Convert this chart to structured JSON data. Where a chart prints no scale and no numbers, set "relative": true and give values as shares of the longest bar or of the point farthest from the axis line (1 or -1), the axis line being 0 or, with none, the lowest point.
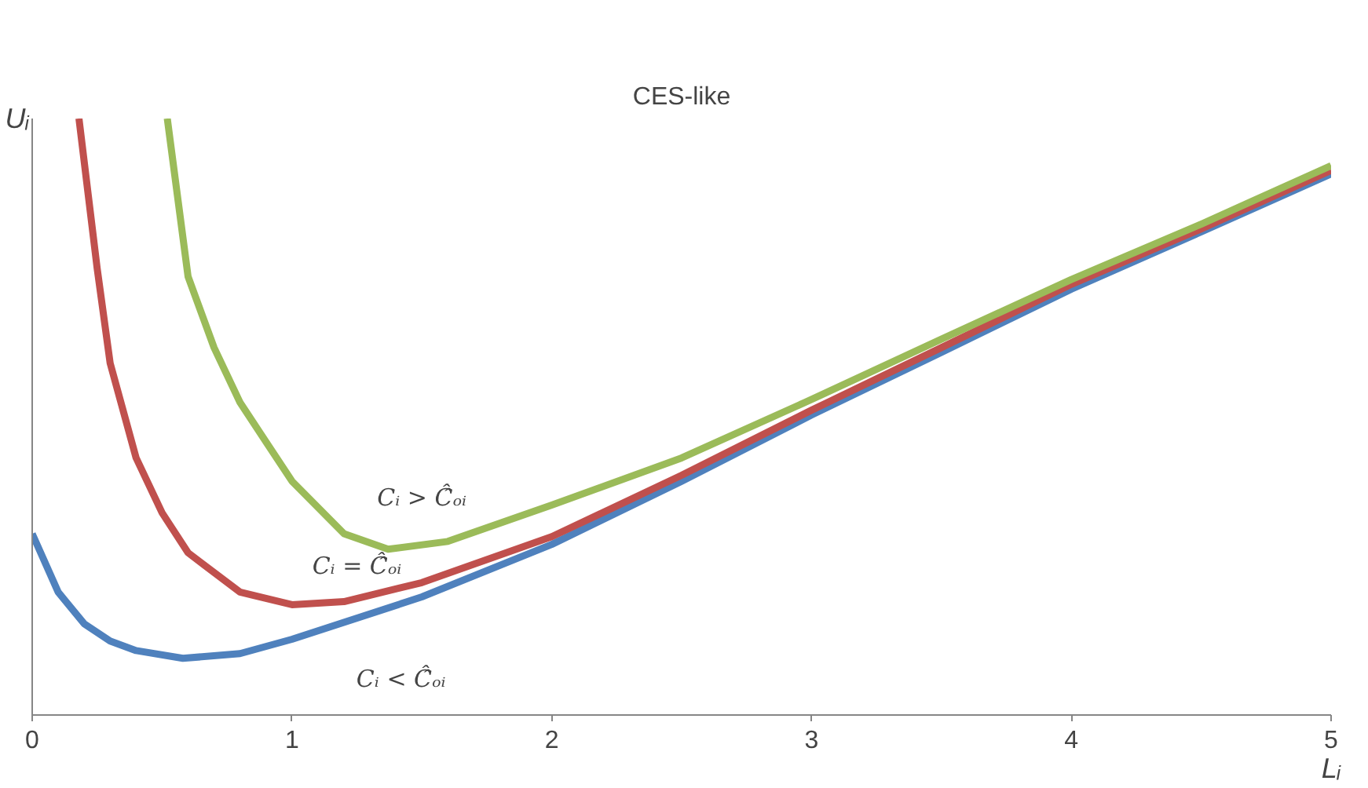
{
  "chart_data": {
    "type": "line",
    "title": "CES-like",
    "xlabel": "Lᵢ",
    "ylabel": "Uᵢ",
    "relative": true,
    "xlim": [
      0,
      5
    ],
    "xticks": [
      0,
      1,
      2,
      3,
      4,
      5
    ],
    "grid": false,
    "marker": "none",
    "line_style": "solid",
    "series": [
      {
        "color": "#4f81bd",
        "x": [
          0,
          0.1,
          0.2,
          0.3,
          0.4,
          0.58,
          0.8,
          1.0,
          1.5,
          2,
          2.5,
          3,
          3.5,
          4,
          4.5,
          5
        ],
        "values": [
          0.304,
          0.206,
          0.153,
          0.124,
          0.108,
          0.095,
          0.103,
          0.127,
          0.198,
          0.286,
          0.392,
          0.503,
          0.608,
          0.714,
          0.81,
          0.907
        ]
      },
      {
        "color": "#c0504d",
        "x": [
          0.18,
          0.25,
          0.3,
          0.4,
          0.5,
          0.6,
          0.8,
          1.0,
          1.2,
          1.5,
          2,
          2.5,
          3,
          3.5,
          4,
          4.5,
          5
        ],
        "values": [
          1.0,
          0.749,
          0.59,
          0.431,
          0.339,
          0.272,
          0.206,
          0.185,
          0.19,
          0.222,
          0.299,
          0.402,
          0.511,
          0.616,
          0.722,
          0.815,
          0.913
        ]
      },
      {
        "color": "#9bbb59",
        "x": [
          0.52,
          0.6,
          0.7,
          0.8,
          0.9,
          1.0,
          1.2,
          1.37,
          1.6,
          2,
          2.5,
          3,
          3.5,
          4,
          4.5,
          5
        ],
        "values": [
          1.0,
          0.735,
          0.616,
          0.524,
          0.458,
          0.392,
          0.304,
          0.278,
          0.291,
          0.352,
          0.431,
          0.529,
          0.63,
          0.73,
          0.823,
          0.921
        ]
      }
    ],
    "annotations": [
      "Cᵢ > Ĉ̂ₒᵢ",
      "Cᵢ = Ĉ̂ₒᵢ",
      "Cᵢ < Ĉ̂ₒᵢ"
    ]
  }
}
